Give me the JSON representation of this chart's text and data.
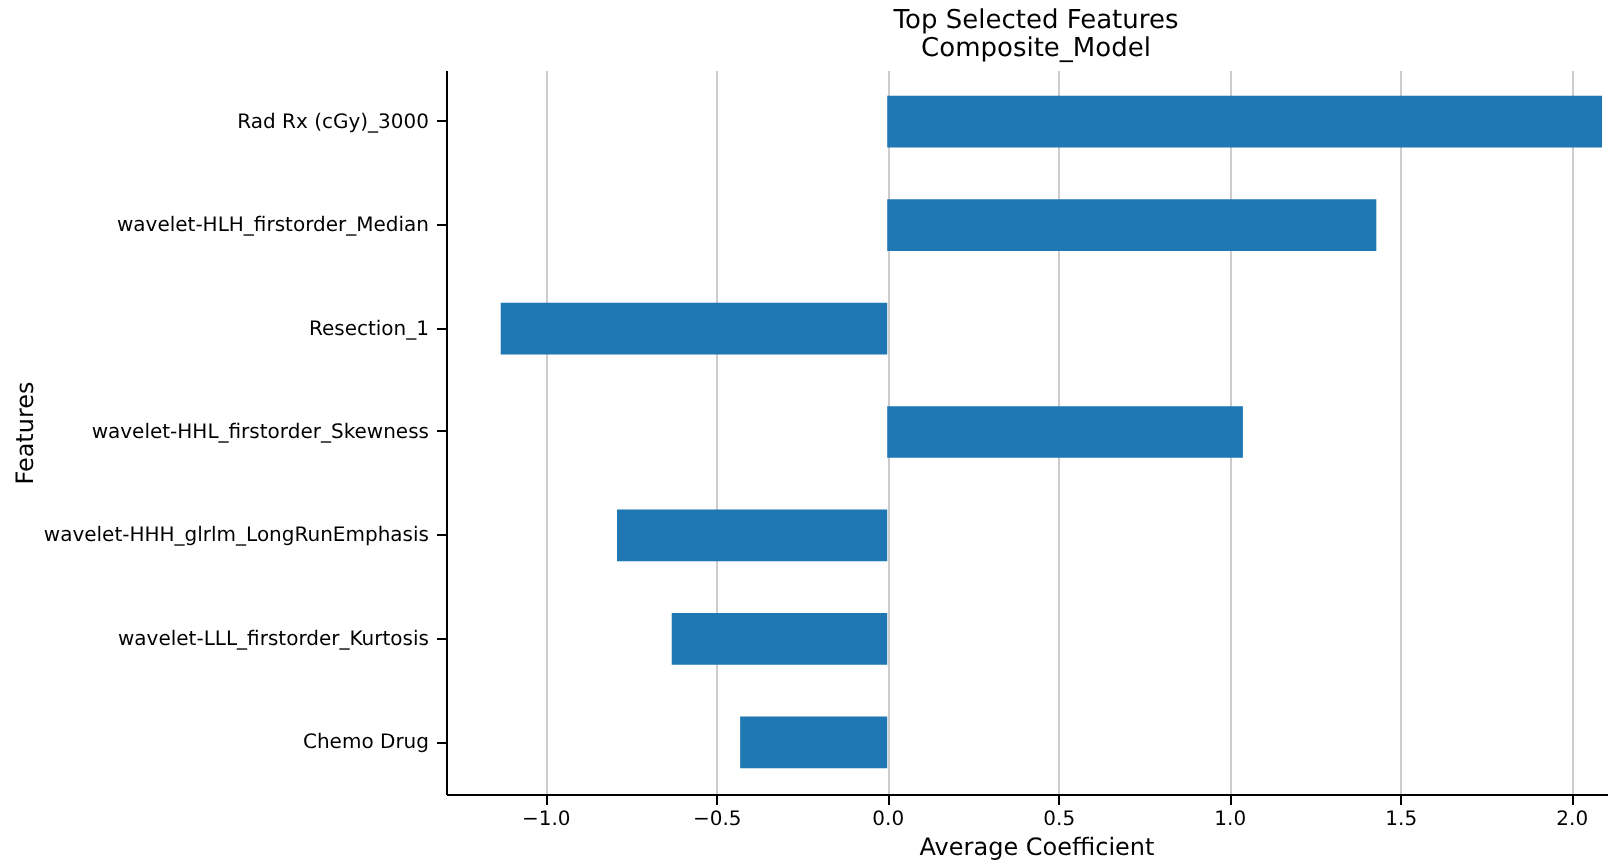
{
  "chart_data": {
    "type": "bar",
    "orientation": "horizontal",
    "title": "Top Selected Features",
    "subtitle": "Composite_Model",
    "xlabel": "Average Coefficient",
    "ylabel": "Features",
    "categories": [
      "Rad Rx (cGy)_3000",
      "wavelet-HLH_firstorder_Median",
      "Resection_1",
      "wavelet-HHL_firstorder_Skewness",
      "wavelet-HHH_glrlm_LongRunEmphasis",
      "wavelet-LLL_firstorder_Kurtosis",
      "Chemo Drug"
    ],
    "values": [
      2.09,
      1.43,
      -1.13,
      1.04,
      -0.79,
      -0.63,
      -0.43
    ],
    "color": "#1f77b4",
    "xlim": [
      -1.29,
      2.16
    ],
    "xticks": [
      {
        "value": -1.0,
        "label": "−1.0"
      },
      {
        "value": -0.5,
        "label": "−0.5"
      },
      {
        "value": 0,
        "label": "0.0"
      },
      {
        "value": 0.5,
        "label": "0.5"
      },
      {
        "value": 1.0,
        "label": "1.0"
      },
      {
        "value": 1.5,
        "label": "1.5"
      },
      {
        "value": 2.0,
        "label": "2.0"
      }
    ],
    "grid": "x"
  }
}
